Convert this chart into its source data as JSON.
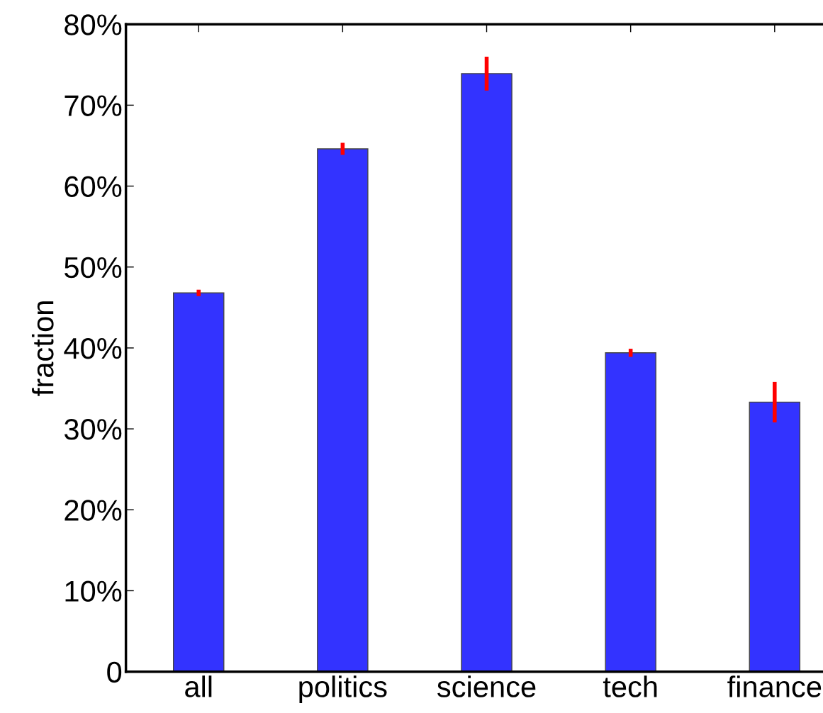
{
  "chart_data": {
    "type": "bar",
    "ylabel": "fraction",
    "categories": [
      "all",
      "politics",
      "science",
      "tech",
      "finance"
    ],
    "values": [
      46.8,
      64.6,
      73.9,
      39.4,
      33.3
    ],
    "errors": [
      0.4,
      0.75,
      2.1,
      0.5,
      2.5
    ],
    "color": "#3333ff",
    "ylim": [
      0,
      80
    ],
    "yticks": [
      {
        "value": 0,
        "label": "0"
      },
      {
        "value": 10,
        "label": "10%"
      },
      {
        "value": 20,
        "label": "20%"
      },
      {
        "value": 30,
        "label": "30%"
      },
      {
        "value": 40,
        "label": "40%"
      },
      {
        "value": 50,
        "label": "50%"
      },
      {
        "value": 60,
        "label": "60%"
      },
      {
        "value": 70,
        "label": "70%"
      },
      {
        "value": 80,
        "label": "80%"
      }
    ],
    "grid": false,
    "legend": false
  }
}
